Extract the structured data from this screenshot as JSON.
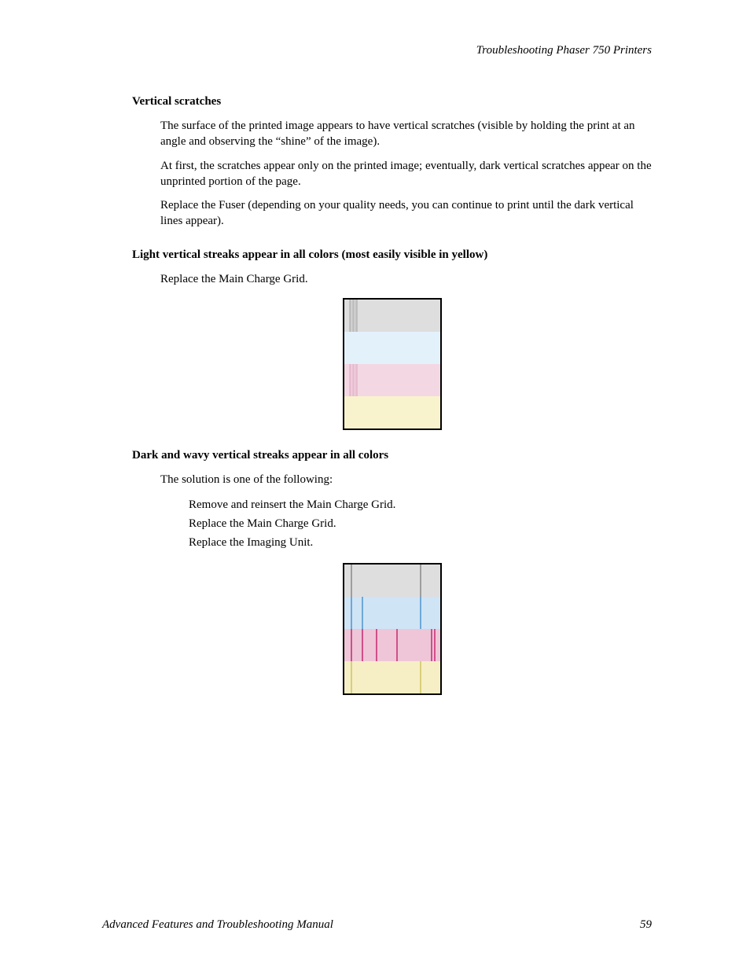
{
  "header": {
    "running_title": "Troubleshooting Phaser 750 Printers"
  },
  "sections": {
    "vertical_scratches": {
      "heading": "Vertical scratches",
      "p1": "The surface of the printed image appears to have vertical scratches (visible by holding the print at an angle and observing the “shine” of the image).",
      "p2": "At first, the scratches appear only on the printed image; eventually, dark vertical scratches appear on the unprinted portion of the page.",
      "p3": "Replace the Fuser (depending on your quality needs, you can continue to print until the dark vertical lines appear)."
    },
    "light_streaks": {
      "heading": "Light vertical streaks appear in all colors (most easily visible in yellow)",
      "p1": "Replace the Main Charge Grid."
    },
    "dark_wavy": {
      "heading": "Dark and wavy vertical streaks appear in all colors",
      "p1": "The solution is one of the following:",
      "li1": "Remove and reinsert the Main Charge Grid.",
      "li2": "Replace the Main Charge Grid.",
      "li3": "Replace the Imaging Unit."
    }
  },
  "figure1": {
    "border_color": "#000000",
    "bands": [
      {
        "color": "#dedede",
        "streak_color": "#bfbfbf",
        "streaks_x": [
          6,
          10,
          14
        ]
      },
      {
        "color": "#e3f1fb",
        "streak_color": "#ffffff",
        "streaks_x": []
      },
      {
        "color": "#f3d8e3",
        "streak_color": "#e8bcd0",
        "streaks_x": [
          6,
          10,
          14
        ]
      },
      {
        "color": "#f9f3cd",
        "streak_color": "#ffffff",
        "streaks_x": []
      }
    ]
  },
  "figure2": {
    "border_color": "#000000",
    "bands": [
      {
        "color": "#dedede",
        "streak_color": "#9e9e9e",
        "streaks_x": [
          8,
          96
        ]
      },
      {
        "color": "#cfe4f5",
        "streak_color": "#6fa8d8",
        "streaks_x": [
          8,
          22,
          96
        ]
      },
      {
        "color": "#eec6d7",
        "streak_color": "#d04f8a",
        "streaks_x": [
          8,
          22,
          40,
          66,
          110,
          114
        ]
      },
      {
        "color": "#f6efc5",
        "streak_color": "#d8cf7a",
        "streaks_x": [
          8,
          96
        ]
      }
    ]
  },
  "footer": {
    "manual_title": "Advanced Features and Troubleshooting Manual",
    "page_number": "59"
  }
}
